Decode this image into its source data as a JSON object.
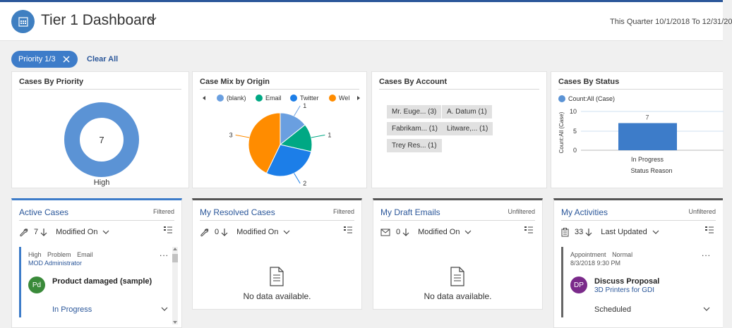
{
  "header": {
    "title": "Tier 1 Dashboard",
    "date_range": "This Quarter 10/1/2018 To 12/31/20"
  },
  "filters": {
    "pill_label": "Priority 1/3",
    "clear_all": "Clear All"
  },
  "cases_by_priority": {
    "title": "Cases By Priority",
    "center_value": "7",
    "label": "High",
    "ring_color": "#5b93d5"
  },
  "case_mix": {
    "title": "Case Mix by Origin",
    "legend": [
      {
        "label": "(blank)",
        "color": "#6a9fe0"
      },
      {
        "label": "Email",
        "color": "#00a884"
      },
      {
        "label": "Twitter",
        "color": "#1c7ee8"
      },
      {
        "label": "Wel",
        "color": "#ff8c00"
      }
    ],
    "slice_labels": [
      "1",
      "1",
      "2",
      "3"
    ]
  },
  "cases_by_account": {
    "title": "Cases By Account",
    "tags": [
      "Mr. Euge... (3)",
      "A. Datum (1)",
      "Fabrikam... (1)",
      "Litware,... (1)",
      "Trey Res... (1)"
    ]
  },
  "cases_by_status": {
    "title": "Cases By Status",
    "legend_label": "Count:All (Case)",
    "ylabel": "Count:All (Case)",
    "xlabel": "Status Reason",
    "y_ticks": [
      "10",
      "5",
      "0"
    ],
    "bar_category": "In Progress",
    "bar_value_label": "7"
  },
  "chart_data": [
    {
      "type": "pie",
      "title": "Cases By Priority",
      "categories": [
        "High"
      ],
      "values": [
        7
      ]
    },
    {
      "type": "pie",
      "title": "Case Mix by Origin",
      "categories": [
        "(blank)",
        "Email",
        "Twitter",
        "Wel"
      ],
      "values": [
        1,
        1,
        2,
        3
      ]
    },
    {
      "type": "bar",
      "title": "Cases By Status",
      "categories": [
        "In Progress"
      ],
      "values": [
        7
      ],
      "xlabel": "Status Reason",
      "ylabel": "Count:All (Case)",
      "ylim": [
        0,
        10
      ],
      "series": [
        {
          "name": "Count:All (Case)",
          "values": [
            7
          ]
        }
      ]
    }
  ],
  "lists": {
    "active_cases": {
      "title": "Active Cases",
      "filter": "Filtered",
      "count": "7",
      "sort_field": "Modified On",
      "record": {
        "meta": [
          "High",
          "Problem",
          "Email"
        ],
        "owner": "MOD Administrator",
        "initials": "Pd",
        "avatar_color": "#3a8a3a",
        "title": "Product damaged (sample)",
        "status": "In Progress",
        "more": "..."
      }
    },
    "resolved_cases": {
      "title": "My Resolved Cases",
      "filter": "Filtered",
      "count": "0",
      "sort_field": "Modified On",
      "empty": "No data available."
    },
    "draft_emails": {
      "title": "My Draft Emails",
      "filter": "Unfiltered",
      "count": "0",
      "sort_field": "Modified On",
      "empty": "No data available."
    },
    "activities": {
      "title": "My Activities",
      "filter": "Unfiltered",
      "count": "33",
      "sort_field": "Last Updated",
      "record": {
        "meta": [
          "Appointment",
          "Normal"
        ],
        "date": "8/3/2018 9:30 PM",
        "initials": "DP",
        "avatar_color": "#7a2a8a",
        "title": "Discuss Proposal",
        "regarding": "3D Printers for GDI",
        "status": "Scheduled",
        "more": "..."
      }
    }
  }
}
